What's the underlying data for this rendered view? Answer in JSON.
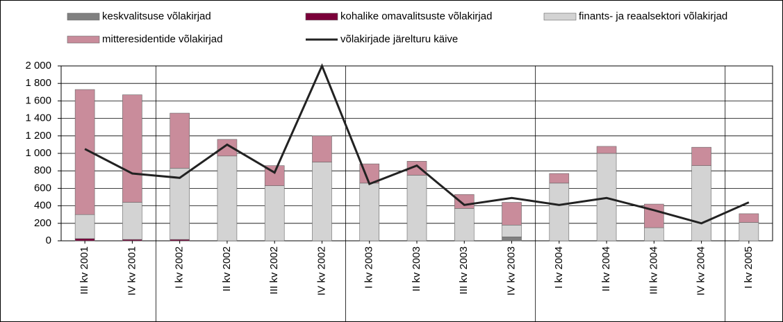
{
  "chart_data": {
    "type": "bar",
    "stacked": true,
    "categories": [
      "III kv 2001",
      "IV kv 2001",
      "I kv 2002",
      "II kv 2002",
      "III kv 2002",
      "IV kv 2002",
      "I kv 2003",
      "II kv 2003",
      "III kv 2003",
      "IV kv 2003",
      "I kv 2004",
      "II kv 2004",
      "III kv 2004",
      "IV kv 2004",
      "I kv 2005"
    ],
    "series": [
      {
        "name": "keskvalitsuse võlakirjad",
        "color": "#808080",
        "values": [
          0,
          0,
          0,
          0,
          0,
          0,
          0,
          0,
          0,
          45,
          0,
          0,
          0,
          0,
          0
        ]
      },
      {
        "name": "kohalike omavalitsuste võlakirjad",
        "color": "#7a0039",
        "values": [
          25,
          15,
          15,
          0,
          0,
          0,
          0,
          0,
          0,
          0,
          0,
          0,
          0,
          0,
          0
        ]
      },
      {
        "name": "finants- ja reaalsektori võlakirjad",
        "color": "#d3d3d3",
        "values": [
          275,
          425,
          815,
          970,
          630,
          900,
          660,
          750,
          370,
          135,
          660,
          1000,
          150,
          860,
          210
        ]
      },
      {
        "name": "mitteresidentide võlakirjad",
        "color": "#c98c9b",
        "values": [
          1430,
          1230,
          630,
          190,
          230,
          300,
          220,
          160,
          160,
          260,
          110,
          80,
          270,
          210,
          100
        ]
      },
      {
        "name": "võlakirjade järelturu käive",
        "color": "#222222",
        "type": "line",
        "values": [
          1050,
          770,
          720,
          1100,
          780,
          2000,
          650,
          860,
          410,
          490,
          410,
          490,
          350,
          200,
          440
        ]
      }
    ],
    "ylim": [
      0,
      2000
    ],
    "yticks": [
      0,
      200,
      400,
      600,
      800,
      {
        "value": 1000,
        "label": "1 000"
      },
      {
        "value": 1200,
        "label": "1 200"
      },
      {
        "value": 1400,
        "label": "1 400"
      },
      {
        "value": 1600,
        "label": "1 600"
      },
      {
        "value": 1800,
        "label": "1 800"
      },
      {
        "value": 2000,
        "label": "2 000"
      }
    ],
    "grid": true
  }
}
